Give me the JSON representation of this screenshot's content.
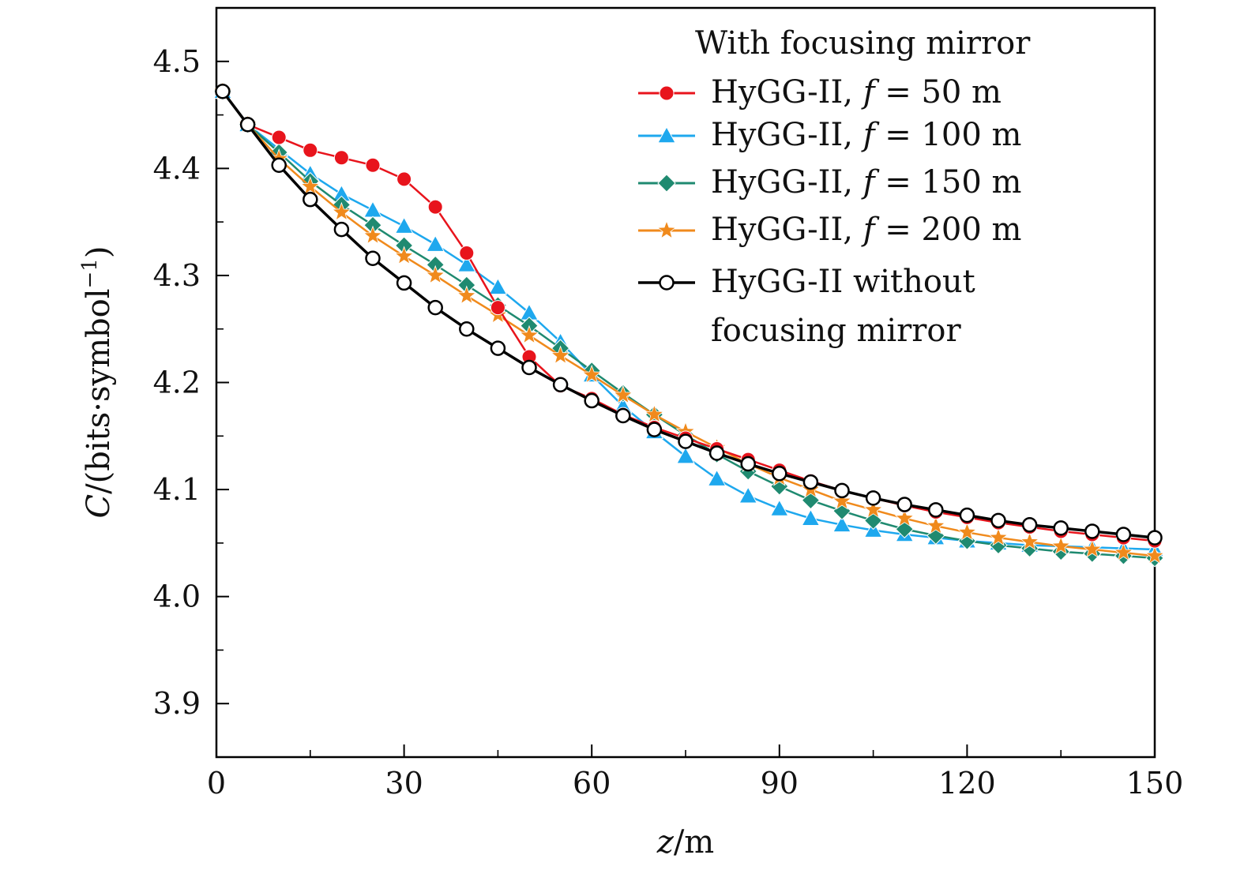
{
  "chart_data": {
    "type": "line",
    "xlabel": {
      "var": "z",
      "unit": "/m"
    },
    "ylabel": {
      "var": "C",
      "unit": "/(bits·symbol",
      "sup": "−1",
      "close": ")"
    },
    "xlim": [
      0,
      150
    ],
    "ylim": [
      3.85,
      4.55
    ],
    "xticks": [
      "0",
      "30",
      "60",
      "90",
      "120",
      "150"
    ],
    "yticks": [
      "3.9",
      "4.0",
      "4.1",
      "4.2",
      "4.3",
      "4.4",
      "4.5"
    ],
    "grid": false,
    "legend": {
      "position": "top-right",
      "title": "With focusing mirror",
      "entries": [
        {
          "prefix": "HyGG-II, ",
          "var": "f",
          "rest": " = 50 m"
        },
        {
          "prefix": "HyGG-II, ",
          "var": "f",
          "rest": " = 100 m"
        },
        {
          "prefix": "HyGG-II, ",
          "var": "f",
          "rest": " = 150 m"
        },
        {
          "prefix": "HyGG-II, ",
          "var": "f",
          "rest": " = 200 m"
        },
        {
          "line1": "HyGG-II without",
          "line2": "focusing mirror"
        }
      ]
    },
    "series": [
      {
        "color": "#e8141c",
        "marker": "circle",
        "x": [
          1,
          5,
          10,
          15,
          20,
          25,
          30,
          35,
          40,
          45,
          50,
          55,
          60,
          65,
          70,
          75,
          80,
          85,
          90,
          95,
          100,
          105,
          110,
          115,
          120,
          125,
          130,
          135,
          140,
          145,
          150
        ],
        "y": [
          4.472,
          4.441,
          4.429,
          4.417,
          4.41,
          4.403,
          4.39,
          4.364,
          4.321,
          4.27,
          4.224,
          4.197,
          4.185,
          4.17,
          4.158,
          4.148,
          4.138,
          4.128,
          4.118,
          4.108,
          4.099,
          4.092,
          4.085,
          4.079,
          4.074,
          4.069,
          4.065,
          4.061,
          4.058,
          4.055,
          4.052
        ]
      },
      {
        "color": "#1ea8ee",
        "marker": "triangle",
        "x": [
          1,
          5,
          10,
          15,
          20,
          25,
          30,
          35,
          40,
          45,
          50,
          55,
          60,
          65,
          70,
          75,
          80,
          85,
          90,
          95,
          100,
          105,
          110,
          115,
          120,
          125,
          130,
          135,
          140,
          145,
          150
        ],
        "y": [
          4.472,
          4.441,
          4.418,
          4.395,
          4.376,
          4.361,
          4.346,
          4.329,
          4.31,
          4.289,
          4.265,
          4.238,
          4.207,
          4.178,
          4.154,
          4.131,
          4.11,
          4.094,
          4.082,
          4.073,
          4.067,
          4.062,
          4.058,
          4.055,
          4.052,
          4.05,
          4.048,
          4.047,
          4.046,
          4.045,
          4.044
        ]
      },
      {
        "color": "#1f8a70",
        "marker": "diamond",
        "x": [
          1,
          5,
          10,
          15,
          20,
          25,
          30,
          35,
          40,
          45,
          50,
          55,
          60,
          65,
          70,
          75,
          80,
          85,
          90,
          95,
          100,
          105,
          110,
          115,
          120,
          125,
          130,
          135,
          140,
          145,
          150
        ],
        "y": [
          4.472,
          4.441,
          4.415,
          4.388,
          4.366,
          4.347,
          4.328,
          4.31,
          4.291,
          4.272,
          4.253,
          4.232,
          4.211,
          4.19,
          4.17,
          4.151,
          4.133,
          4.117,
          4.103,
          4.09,
          4.08,
          4.071,
          4.063,
          4.057,
          4.052,
          4.048,
          4.045,
          4.042,
          4.04,
          4.038,
          4.036
        ]
      },
      {
        "color": "#f08a1c",
        "marker": "star",
        "x": [
          1,
          5,
          10,
          15,
          20,
          25,
          30,
          35,
          40,
          45,
          50,
          55,
          60,
          65,
          70,
          75,
          80,
          85,
          90,
          95,
          100,
          105,
          110,
          115,
          120,
          125,
          130,
          135,
          140,
          145,
          150
        ],
        "y": [
          4.472,
          4.441,
          4.409,
          4.383,
          4.359,
          4.337,
          4.318,
          4.3,
          4.281,
          4.263,
          4.244,
          4.225,
          4.207,
          4.188,
          4.17,
          4.154,
          4.139,
          4.124,
          4.111,
          4.1,
          4.089,
          4.081,
          4.073,
          4.066,
          4.06,
          4.055,
          4.051,
          4.047,
          4.044,
          4.041,
          4.038
        ]
      },
      {
        "color": "#000000",
        "marker": "open-circle",
        "x": [
          1,
          5,
          10,
          15,
          20,
          25,
          30,
          35,
          40,
          45,
          50,
          55,
          60,
          65,
          70,
          75,
          80,
          85,
          90,
          95,
          100,
          105,
          110,
          115,
          120,
          125,
          130,
          135,
          140,
          145,
          150
        ],
        "y": [
          4.472,
          4.441,
          4.403,
          4.371,
          4.343,
          4.316,
          4.293,
          4.27,
          4.25,
          4.232,
          4.214,
          4.198,
          4.183,
          4.169,
          4.156,
          4.145,
          4.134,
          4.124,
          4.115,
          4.107,
          4.099,
          4.092,
          4.086,
          4.081,
          4.076,
          4.071,
          4.067,
          4.064,
          4.061,
          4.058,
          4.055
        ]
      }
    ]
  }
}
